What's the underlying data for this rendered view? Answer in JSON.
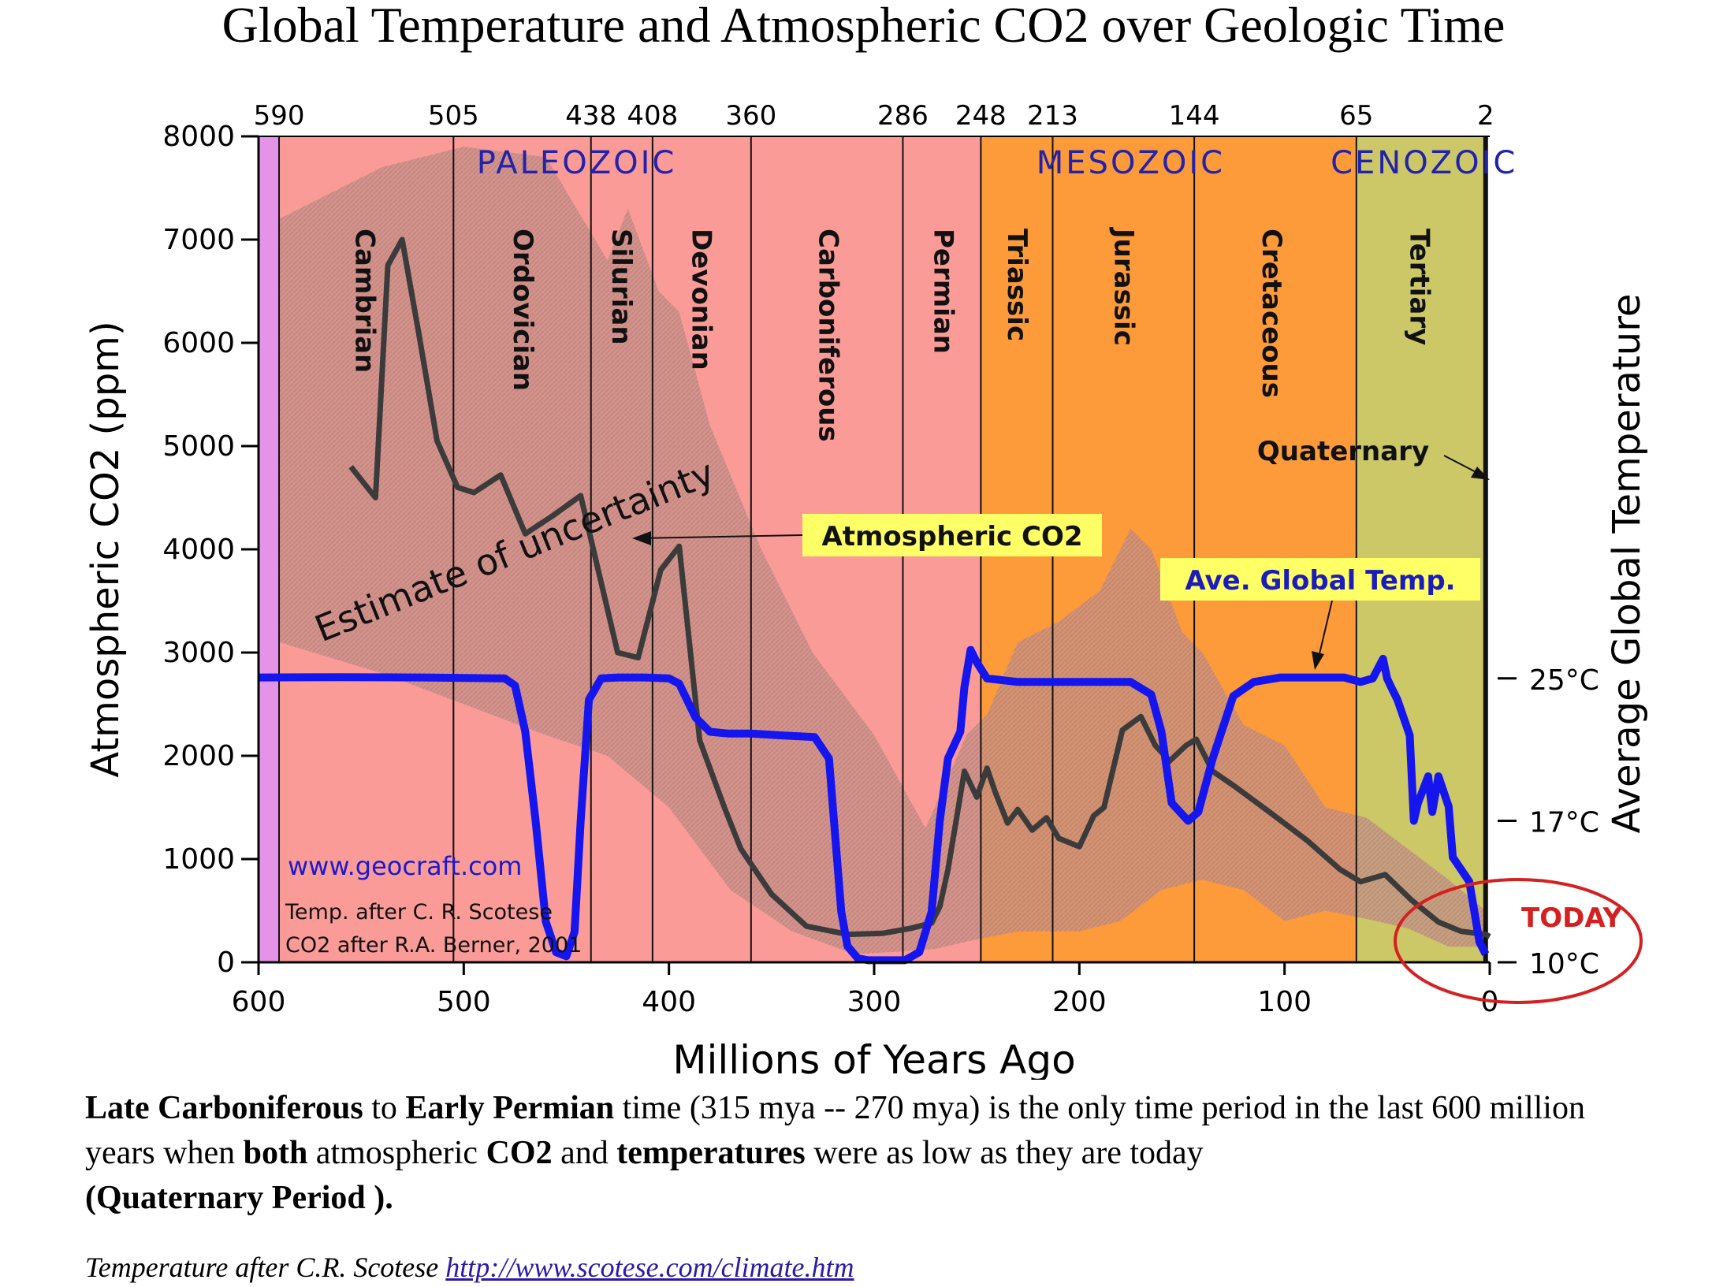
{
  "title": "Global Temperature and Atmospheric CO2 over Geologic Time",
  "caption": {
    "p1_b": "Late Carboniferous",
    "p2": " to ",
    "p3_b": "Early Permian",
    "p4": " time (315 mya -- 270 mya) is the only time period in the last 600 million years when ",
    "p5_b": "both",
    "p6": " atmospheric ",
    "p7_b": "CO2",
    "p8": " and ",
    "p9_b": "temperatures",
    "p10": " were as low as they are today ",
    "p11_b": "(Quaternary Period )."
  },
  "credit": {
    "text": "Temperature after C.R. Scotese ",
    "link": "http://www.scotese.com/climate.htm"
  },
  "colors": {
    "paleozoic": "#fb9b98",
    "cambrian_strip": "#e393e8",
    "mesozoic": "#fd9a3a",
    "cenozoic": "#ccc868",
    "uncertainty": "#c48f89",
    "co2_line": "#3b3b3b",
    "temp_line": "#1515ee",
    "era_label": "#2222aa",
    "label_box": "#ffff66",
    "today_circle": "#d42020"
  },
  "chart_data": {
    "type": "line",
    "title": "",
    "xlabel": "Millions of Years Ago",
    "ylabel": "Atmospheric CO2 (ppm)",
    "y2label": "Average Global Temperature",
    "xlim": [
      600,
      0
    ],
    "ylim": [
      0,
      8000
    ],
    "x_ticks": [
      600,
      500,
      400,
      300,
      200,
      100,
      0
    ],
    "y_ticks": [
      0,
      1000,
      2000,
      3000,
      4000,
      5000,
      6000,
      7000,
      8000
    ],
    "y2_ticks": [
      {
        "label": "25°C",
        "co2_equiv": 2750
      },
      {
        "label": "17°C",
        "co2_equiv": 1370
      },
      {
        "label": "10°C",
        "co2_equiv": 0
      }
    ],
    "period_boundaries": [
      590,
      505,
      438,
      408,
      360,
      286,
      248,
      213,
      144,
      65,
      2
    ],
    "eras": [
      {
        "name": "PALEOZOIC",
        "from": 590,
        "to": 248
      },
      {
        "name": "MESOZOIC",
        "from": 248,
        "to": 65
      },
      {
        "name": "CENOZOIC",
        "from": 65,
        "to": 2
      }
    ],
    "periods": [
      {
        "name": "Cambrian",
        "mid": 548
      },
      {
        "name": "Ordovician",
        "mid": 471
      },
      {
        "name": "Silurian",
        "mid": 423
      },
      {
        "name": "Devonian",
        "mid": 384
      },
      {
        "name": "Carboniferous",
        "mid": 322
      },
      {
        "name": "Permian",
        "mid": 266
      },
      {
        "name": "Triassic",
        "mid": 230
      },
      {
        "name": "Jurassic",
        "mid": 178
      },
      {
        "name": "Cretaceous",
        "mid": 106
      },
      {
        "name": "Tertiary",
        "mid": 34
      }
    ],
    "series": [
      {
        "name": "Atmospheric CO2",
        "x": [
          555,
          543,
          537,
          530,
          522,
          513,
          503,
          495,
          482,
          470,
          457,
          443,
          425,
          415,
          404,
          395,
          385,
          373,
          365,
          350,
          333,
          313,
          296,
          282,
          272,
          268,
          264,
          256,
          250,
          245,
          241,
          235,
          230,
          223,
          216,
          210,
          200,
          193,
          188,
          179,
          170,
          163,
          156,
          148,
          143,
          135,
          124,
          107,
          89,
          73,
          63,
          51,
          38,
          25,
          14,
          2,
          0
        ],
        "y": [
          4800,
          4500,
          6750,
          7000,
          6100,
          5050,
          4600,
          4550,
          4720,
          4150,
          4320,
          4520,
          3000,
          2950,
          3800,
          4030,
          2150,
          1500,
          1100,
          660,
          350,
          270,
          280,
          330,
          380,
          540,
          900,
          1850,
          1600,
          1880,
          1650,
          1350,
          1480,
          1280,
          1400,
          1200,
          1120,
          1420,
          1500,
          2250,
          2380,
          2100,
          1950,
          2100,
          2160,
          1850,
          1700,
          1450,
          1180,
          900,
          780,
          850,
          600,
          390,
          300,
          270,
          250
        ]
      },
      {
        "name": "Ave. Global Temp.",
        "x": [
          600,
          560,
          520,
          480,
          475,
          470,
          465,
          460,
          455,
          450,
          446,
          443,
          439,
          433,
          425,
          412,
          400,
          395,
          387,
          380,
          371,
          360,
          345,
          329,
          322,
          316,
          313,
          308,
          303,
          295,
          285,
          278,
          272,
          268,
          264,
          258,
          256,
          253,
          250,
          245,
          230,
          210,
          190,
          175,
          165,
          160,
          155,
          147,
          142,
          135,
          125,
          115,
          102,
          85,
          71,
          63,
          57,
          52,
          50,
          48,
          45,
          42,
          39,
          37,
          35,
          30,
          28,
          25,
          20,
          18,
          10,
          5,
          2
        ],
        "temp_c": [
          25.05,
          25.07,
          25.05,
          25.0,
          24.6,
          22.0,
          17.0,
          12.0,
          10.5,
          10.3,
          11.5,
          17.0,
          23.8,
          25.0,
          25.05,
          25.05,
          25.0,
          24.7,
          22.8,
          22.0,
          21.9,
          21.9,
          21.8,
          21.7,
          20.5,
          12.5,
          10.8,
          10.2,
          10.1,
          10.1,
          10.1,
          10.5,
          12.5,
          17.0,
          20.5,
          22.0,
          24.5,
          26.6,
          25.9,
          25.0,
          24.8,
          24.8,
          24.8,
          24.8,
          24.1,
          22.0,
          18.0,
          17.0,
          17.5,
          20.5,
          24.0,
          24.8,
          25.05,
          25.05,
          25.05,
          24.8,
          25.0,
          26.1,
          25.0,
          24.5,
          23.8,
          22.8,
          21.8,
          17.0,
          18.0,
          19.5,
          17.5,
          19.5,
          17.8,
          15.2,
          14.0,
          11.0,
          10.4
        ]
      }
    ],
    "annotations": {
      "uncertainty_label": "Estimate of uncertainty",
      "co2_box": "Atmospheric CO2",
      "temp_box": "Ave. Global Temp.",
      "quaternary": "Quaternary",
      "today": "TODAY",
      "site": "www.geocraft.com",
      "credit_temp": "Temp. after C. R. Scotese",
      "credit_co2": "CO2 after R.A. Berner, 2001"
    },
    "grid": false,
    "legend": "none"
  }
}
